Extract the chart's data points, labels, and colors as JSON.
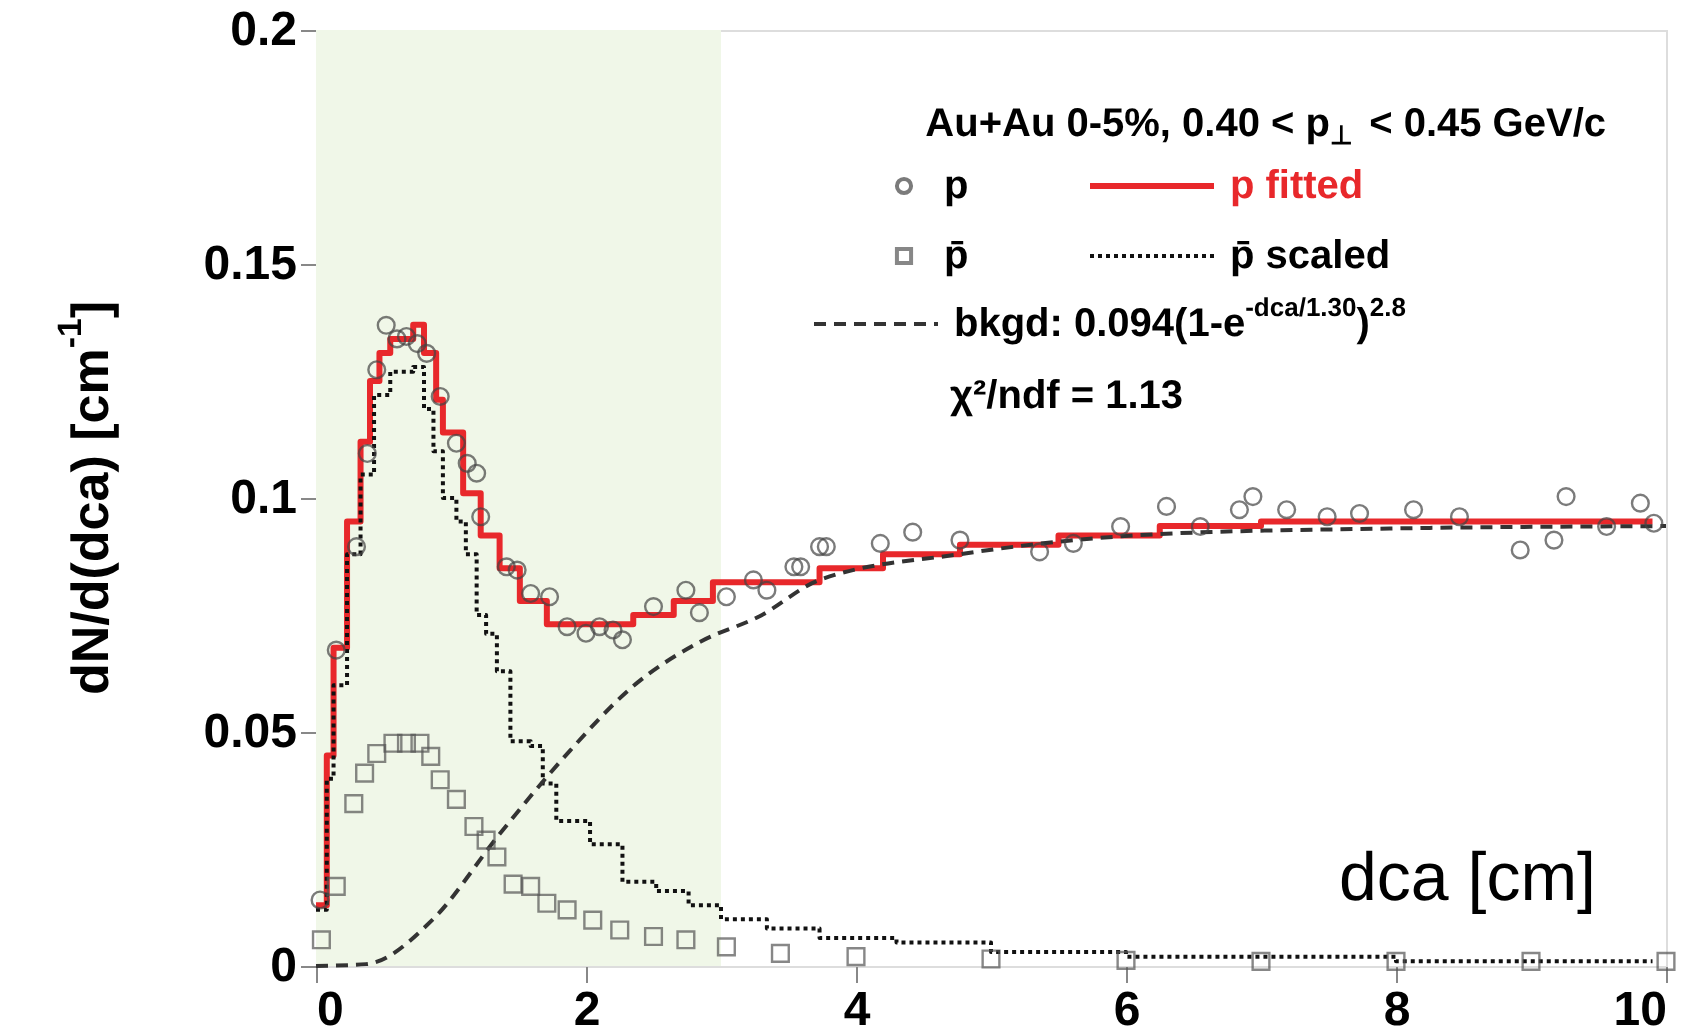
{
  "chart_data": {
    "type": "scatter",
    "xlabel": "dca [cm]",
    "ylabel": "dN/d(dca) [cm$^{-1}$]",
    "legend_title": "Au+Au 0-5%, 0.40 < p$_{⊥}$ < 0.45 GeV/c",
    "annotations": [
      "χ²/ndf = 1.13"
    ],
    "xlim": [
      0,
      10
    ],
    "xticks": [
      0,
      2,
      4,
      6,
      8,
      10
    ],
    "ylim": [
      0,
      0.2
    ],
    "yticks": [
      0,
      0.05,
      0.1,
      0.15,
      0.2
    ],
    "grid": false,
    "legend": "top right",
    "bands": [
      {
        "axis": "x",
        "from": 0,
        "to": 3,
        "color": "#f0f7e8"
      }
    ],
    "series": [
      {
        "name": "p",
        "marker": "circle",
        "color": "#444444",
        "x": [
          0.03,
          0.15,
          0.3,
          0.38,
          0.45,
          0.52,
          0.6,
          0.67,
          0.75,
          0.82,
          0.92,
          1.04,
          1.12,
          1.19,
          1.22,
          1.41,
          1.49,
          1.59,
          1.73,
          1.86,
          2.0,
          2.1,
          2.2,
          2.27,
          2.5,
          2.74,
          2.84,
          3.04,
          3.24,
          3.34,
          3.54,
          3.59,
          3.73,
          3.78,
          4.18,
          4.42,
          4.77,
          5.36,
          5.61,
          5.96,
          6.3,
          6.55,
          6.84,
          6.94,
          7.19,
          7.49,
          7.73,
          8.13,
          8.47,
          8.92,
          9.17,
          9.26,
          9.56,
          9.81,
          9.91
        ],
        "values": [
          0.0141,
          0.0675,
          0.0896,
          0.1095,
          0.1274,
          0.1369,
          0.134,
          0.1345,
          0.133,
          0.1309,
          0.1217,
          0.1117,
          0.1074,
          0.1053,
          0.096,
          0.0853,
          0.0846,
          0.0796,
          0.0789,
          0.0725,
          0.0711,
          0.0725,
          0.0718,
          0.0697,
          0.0768,
          0.0803,
          0.0755,
          0.0789,
          0.0825,
          0.0803,
          0.0853,
          0.0853,
          0.0896,
          0.0896,
          0.0903,
          0.0927,
          0.091,
          0.0885,
          0.0903,
          0.0939,
          0.0982,
          0.0939,
          0.0975,
          0.1003,
          0.0975,
          0.096,
          0.0967,
          0.0975,
          0.096,
          0.0889,
          0.091,
          0.1003,
          0.0939,
          0.0989,
          0.0946
        ]
      },
      {
        "name": "p̄",
        "marker": "square",
        "color": "#555555",
        "x": [
          0.04,
          0.15,
          0.28,
          0.36,
          0.45,
          0.57,
          0.67,
          0.77,
          0.85,
          0.92,
          1.04,
          1.17,
          1.26,
          1.34,
          1.46,
          1.59,
          1.71,
          1.86,
          2.05,
          2.25,
          2.5,
          2.74,
          3.04,
          3.44,
          4,
          5,
          6,
          7,
          8,
          9,
          10
        ],
        "values": [
          0.0056,
          0.017,
          0.0347,
          0.0412,
          0.0454,
          0.0476,
          0.0476,
          0.0476,
          0.0448,
          0.0398,
          0.0356,
          0.0298,
          0.0269,
          0.0233,
          0.0175,
          0.017,
          0.0134,
          0.012,
          0.0098,
          0.0077,
          0.0063,
          0.0056,
          0.0041,
          0.0027,
          0.002,
          0.0015,
          0.0012,
          0.001,
          0.001,
          0.001,
          0.001
        ]
      },
      {
        "name": "p fitted",
        "type": "step",
        "line_style": "solid",
        "color": "#e8282b",
        "x": [
          0,
          0.08,
          0.13,
          0.23,
          0.33,
          0.4,
          0.47,
          0.55,
          0.72,
          0.8,
          0.89,
          0.94,
          1.09,
          1.22,
          1.36,
          1.51,
          1.71,
          1.96,
          2.35,
          2.65,
          2.94,
          3.3,
          3.73,
          4.2,
          4.77,
          5.5,
          6.25,
          7.0,
          7.73,
          8.5,
          9.2,
          9.9
        ],
        "values": [
          0.013,
          0.045,
          0.068,
          0.095,
          0.112,
          0.125,
          0.131,
          0.134,
          0.137,
          0.131,
          0.121,
          0.114,
          0.101,
          0.092,
          0.085,
          0.078,
          0.073,
          0.073,
          0.075,
          0.078,
          0.082,
          0.082,
          0.085,
          0.088,
          0.09,
          0.092,
          0.094,
          0.095,
          0.095,
          0.095,
          0.095,
          0.095
        ]
      },
      {
        "name": "p̄ scaled",
        "type": "step",
        "line_style": "dotted",
        "color": "#111111",
        "x": [
          0,
          0.08,
          0.13,
          0.23,
          0.33,
          0.43,
          0.55,
          0.72,
          0.8,
          0.87,
          0.94,
          1.04,
          1.11,
          1.19,
          1.26,
          1.34,
          1.44,
          1.59,
          1.68,
          1.78,
          2.03,
          2.27,
          2.52,
          2.76,
          3.0,
          3.34,
          3.73,
          4.3,
          5,
          6,
          7,
          8,
          9,
          9.9
        ],
        "values": [
          0.012,
          0.04,
          0.06,
          0.088,
          0.105,
          0.122,
          0.127,
          0.128,
          0.119,
          0.11,
          0.1,
          0.095,
          0.088,
          0.075,
          0.071,
          0.063,
          0.048,
          0.047,
          0.039,
          0.031,
          0.026,
          0.018,
          0.016,
          0.013,
          0.01,
          0.008,
          0.006,
          0.005,
          0.003,
          0.002,
          0.002,
          0.001,
          0.001,
          0.001
        ]
      },
      {
        "name": "bkgd: 0.094(1-e$^{-dca/1.30}$)$^{2.8}$",
        "type": "line",
        "line_style": "dashed",
        "color": "#333333",
        "x": [
          0,
          0.37,
          0.86,
          1.36,
          1.85,
          2.35,
          2.84,
          3.29,
          3.73,
          4.77,
          6.25,
          8,
          10
        ],
        "values": [
          0,
          0.0004,
          0.0098,
          0.0282,
          0.045,
          0.0598,
          0.0692,
          0.0748,
          0.0825,
          0.088,
          0.0923,
          0.0935,
          0.094
        ]
      }
    ]
  }
}
